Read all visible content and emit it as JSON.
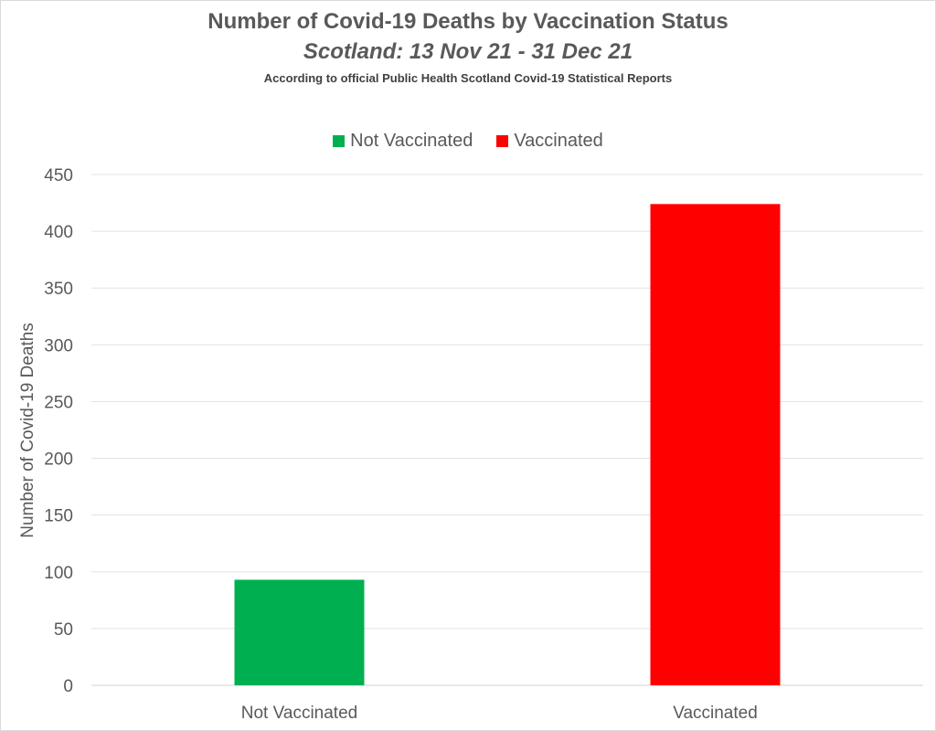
{
  "chart_data": {
    "type": "bar",
    "title": "Number of Covid-19 Deaths by Vaccination Status",
    "subtitle": "Scotland: 13 Nov 21 - 31 Dec 21",
    "note": "According to official Public Health Scotland Covid-19 Statistical Reports",
    "categories": [
      "Not Vaccinated",
      "Vaccinated"
    ],
    "series": [
      {
        "name": "Not Vaccinated",
        "color": "#00b050",
        "values": [
          93,
          null
        ]
      },
      {
        "name": "Vaccinated",
        "color": "#ff0000",
        "values": [
          null,
          424
        ]
      }
    ],
    "xlabel": "",
    "ylabel": "Number of Covid-19 Deaths",
    "ylim": [
      0,
      450
    ],
    "yticks": [
      0,
      50,
      100,
      150,
      200,
      250,
      300,
      350,
      400,
      450
    ],
    "grid": true,
    "legend_position": "top"
  }
}
